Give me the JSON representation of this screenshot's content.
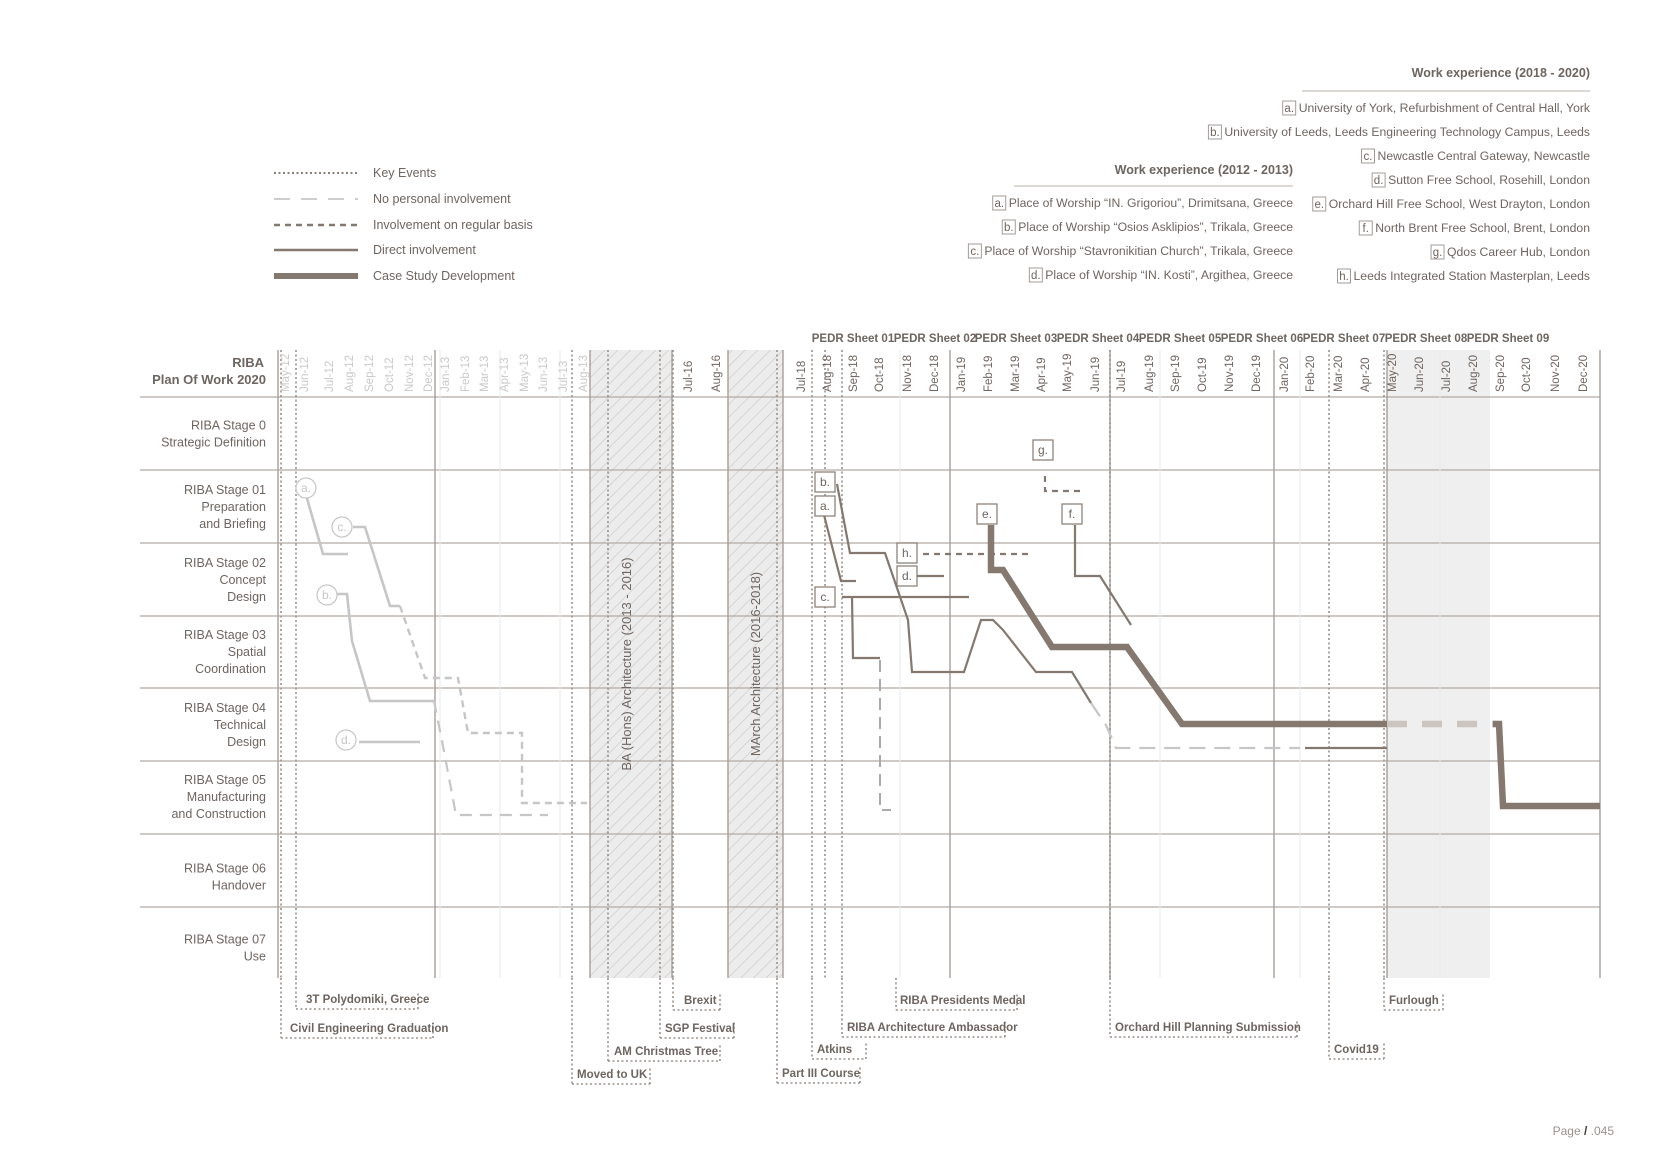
{
  "legend": [
    {
      "label": "Key Events",
      "style": "key"
    },
    {
      "label": "No personal involvement",
      "style": "none"
    },
    {
      "label": "Involvement on regular basis",
      "style": "regular"
    },
    {
      "label": "Direct involvement",
      "style": "direct"
    },
    {
      "label": "Case Study Development",
      "style": "case"
    }
  ],
  "work2012": {
    "title": "Work experience (2012 - 2013)",
    "items": [
      {
        "letter": "a.",
        "text": "Place of Worship “IN. Grigoriou”, Drimitsana, Greece"
      },
      {
        "letter": "b.",
        "text": "Place of Worship “Osios Asklipios”, Trikala, Greece"
      },
      {
        "letter": "c.",
        "text": "Place of Worship “Stavronikitian Church”, Trikala, Greece"
      },
      {
        "letter": "d.",
        "text": "Place of Worship “IN. Kosti”, Argithea, Greece"
      }
    ]
  },
  "work2018": {
    "title": "Work experience (2018 - 2020)",
    "items": [
      {
        "letter": "a.",
        "text": "University of York, Refurbishment of Central Hall, York"
      },
      {
        "letter": "b.",
        "text": "University of Leeds, Leeds Engineering Technology Campus, Leeds"
      },
      {
        "letter": "c.",
        "text": "Newcastle Central Gateway, Newcastle"
      },
      {
        "letter": "d.",
        "text": "Sutton Free School, Rosehill, London"
      },
      {
        "letter": "e.",
        "text": "Orchard Hill Free School, West Drayton, London"
      },
      {
        "letter": "f.",
        "text": "North Brent Free School, Brent, London"
      },
      {
        "letter": "g.",
        "text": "Qdos Career Hub, London"
      },
      {
        "letter": "h.",
        "text": "Leeds Integrated Station Masterplan, Leeds"
      }
    ]
  },
  "riba": {
    "title_line1": "RIBA",
    "title_line2": "Plan Of Work 2020",
    "stages": [
      {
        "lines": [
          "RIBA Stage 0",
          "Strategic Definition"
        ]
      },
      {
        "lines": [
          "RIBA Stage 01",
          "Preparation",
          "and Briefing"
        ]
      },
      {
        "lines": [
          "RIBA Stage 02",
          "Concept",
          "Design"
        ]
      },
      {
        "lines": [
          "RIBA Stage 03",
          "Spatial",
          "Coordination"
        ]
      },
      {
        "lines": [
          "RIBA Stage 04",
          "Technical",
          "Design"
        ]
      },
      {
        "lines": [
          "RIBA Stage 05",
          "Manufacturing",
          "and Construction"
        ]
      },
      {
        "lines": [
          "RIBA Stage 06",
          "Handover"
        ]
      },
      {
        "lines": [
          "RIBA Stage 07",
          "Use"
        ]
      }
    ]
  },
  "timeline": {
    "months_early": [
      "May-12",
      "Jun-12",
      "Jul-12",
      "Aug-12",
      "Sep-12",
      "Oct-12",
      "Nov-12",
      "Dec-12",
      "Jan-13",
      "Feb-13",
      "Mar-13",
      "Apr-13",
      "May-13",
      "Jun-13",
      "Jul-13",
      "Aug-13"
    ],
    "months_mid": [
      "Jul-16",
      "Aug-16"
    ],
    "months_late": [
      "Jul-18",
      "Aug-18",
      "Sep-18",
      "Oct-18",
      "Nov-18",
      "Dec-18",
      "Jan-19",
      "Feb-19",
      "Mar-19",
      "Apr-19",
      "May-19",
      "Jun-19",
      "Jul-19",
      "Aug-19",
      "Sep-19",
      "Oct-19",
      "Nov-19",
      "Dec-19",
      "Jan-20",
      "Feb-20",
      "Mar-20",
      "Apr-20",
      "May-20",
      "Jun-20",
      "Jul-20",
      "Aug-20",
      "Sep-20",
      "Oct-20",
      "Nov-20",
      "Dec-20"
    ],
    "pedr": [
      "PEDR Sheet 01",
      "PEDR Sheet 02",
      "PEDR Sheet 03",
      "PEDR Sheet 04",
      "PEDR Sheet 05",
      "PEDR Sheet 06",
      "PEDR Sheet 07",
      "PEDR Sheet 08",
      "PEDR Sheet 09"
    ],
    "ba_label": "BA (Hons) Architecture (2013 - 2016)",
    "march_label": "MArch Architecture (2016-2018)"
  },
  "events": [
    {
      "label": "3T Polydomiki, Greece"
    },
    {
      "label": "Civil Engineering Graduation"
    },
    {
      "label": "Moved to UK"
    },
    {
      "label": "AM Christmas Tree"
    },
    {
      "label": "SGP Festival"
    },
    {
      "label": "Brexit"
    },
    {
      "label": "Part III Course"
    },
    {
      "label": "Atkins"
    },
    {
      "label": "RIBA Architecture Ambassador"
    },
    {
      "label": "RIBA Presidents Medal"
    },
    {
      "label": "Orchard Hill Planning Submission"
    },
    {
      "label": "Covid19"
    },
    {
      "label": "Furlough"
    }
  ],
  "chart_markers": {
    "early": [
      "a.",
      "b.",
      "c.",
      "d."
    ],
    "late": [
      "a.",
      "b.",
      "c.",
      "d.",
      "e.",
      "f.",
      "g.",
      "h."
    ]
  },
  "page_number": {
    "prefix": "Page ",
    "slash": "/",
    "number": " .045"
  },
  "colors": {
    "dark": "#85796f",
    "text": "#6e6560",
    "light": "#c4c4c4",
    "grid": "#d4d4d4",
    "furlough_band": "#efefef"
  }
}
